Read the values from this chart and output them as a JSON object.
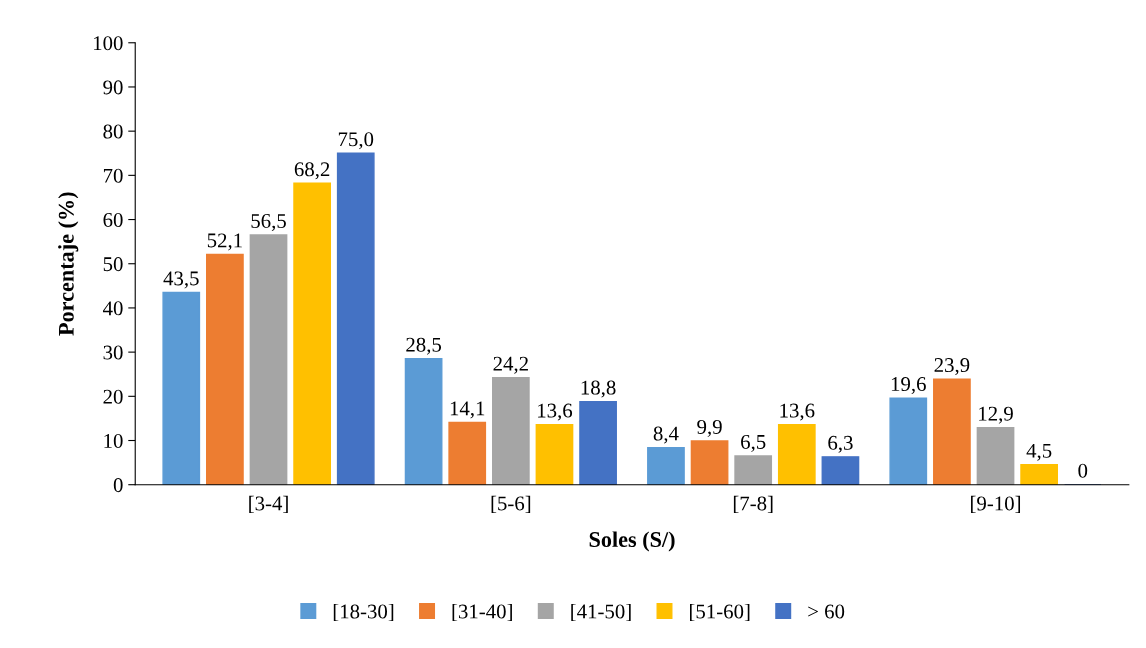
{
  "chart_data": {
    "type": "bar",
    "xlabel": "Soles (S/)",
    "ylabel": "Porcentaje (%)",
    "categories": [
      "[3-4]",
      "[5-6]",
      "[7-8]",
      "[9-10]"
    ],
    "series": [
      {
        "name": "[18-30]",
        "color": "#5b9bd5",
        "values": [
          43.5,
          28.5,
          8.4,
          19.6
        ],
        "value_labels": [
          "43,5",
          "28,5",
          "8,4",
          "19,6"
        ]
      },
      {
        "name": "[31-40]",
        "color": "#ed7d31",
        "values": [
          52.1,
          14.1,
          9.9,
          23.9
        ],
        "value_labels": [
          "52,1",
          "14,1",
          "9,9",
          "23,9"
        ]
      },
      {
        "name": "[41-50]",
        "color": "#a5a5a5",
        "values": [
          56.5,
          24.2,
          6.5,
          12.9
        ],
        "value_labels": [
          "56,5",
          "24,2",
          "6,5",
          "12,9"
        ]
      },
      {
        "name": "[51-60]",
        "color": "#ffc000",
        "values": [
          68.2,
          13.6,
          13.6,
          4.5
        ],
        "value_labels": [
          "68,2",
          "13,6",
          "13,6",
          "4,5"
        ]
      },
      {
        "name": "> 60",
        "color": "#4472c4",
        "values": [
          75.0,
          18.8,
          6.3,
          0
        ],
        "value_labels": [
          "75,0",
          "18,8",
          "6,3",
          "0"
        ]
      }
    ],
    "ylim": [
      0,
      100
    ],
    "yticks": [
      0,
      10,
      20,
      30,
      40,
      50,
      60,
      70,
      80,
      90,
      100
    ],
    "grid": false,
    "legend": "bottom"
  }
}
